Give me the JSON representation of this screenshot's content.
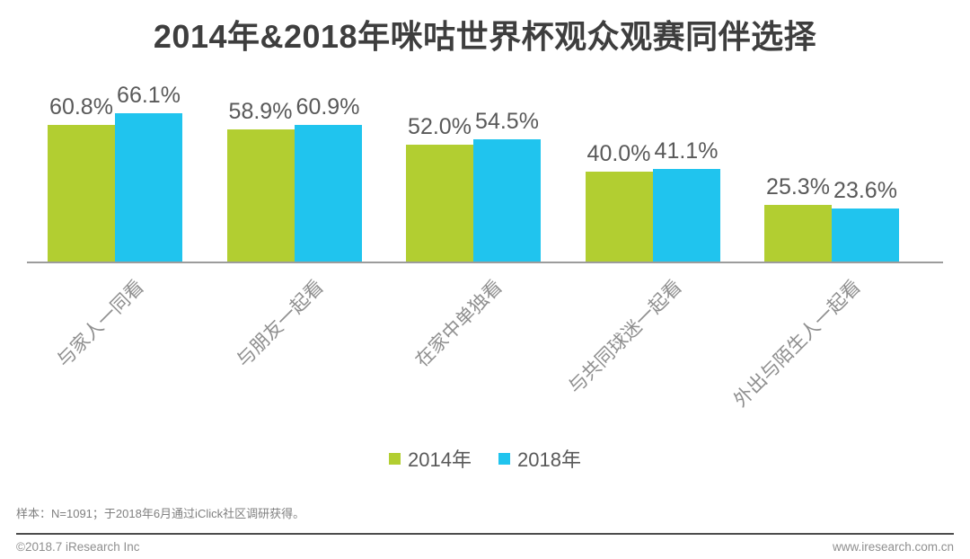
{
  "title": "2014年&2018年咪咕世界杯观众观赛同伴选择",
  "chart_data": {
    "type": "bar",
    "categories": [
      "与家人一同看",
      "与朋友一起看",
      "在家中单独看",
      "与共同球迷一起看",
      "外出与陌生人一起看"
    ],
    "series": [
      {
        "name": "2014年",
        "color": "#b2ce31",
        "values": [
          60.8,
          58.9,
          52.0,
          40.0,
          25.3
        ]
      },
      {
        "name": "2018年",
        "color": "#20c4ee",
        "values": [
          66.1,
          60.9,
          54.5,
          41.1,
          23.6
        ]
      }
    ],
    "value_suffix": "%",
    "ylim": [
      0,
      100
    ],
    "grid": false,
    "data_labels": true,
    "legend_position": "bottom-center",
    "axis_color": "#9c9c9c"
  },
  "footnote": "样本：N=1091；于2018年6月通过iClick社区调研获得。",
  "footer": {
    "left": "©2018.7 iResearch Inc",
    "right": "www.iresearch.com.cn"
  }
}
